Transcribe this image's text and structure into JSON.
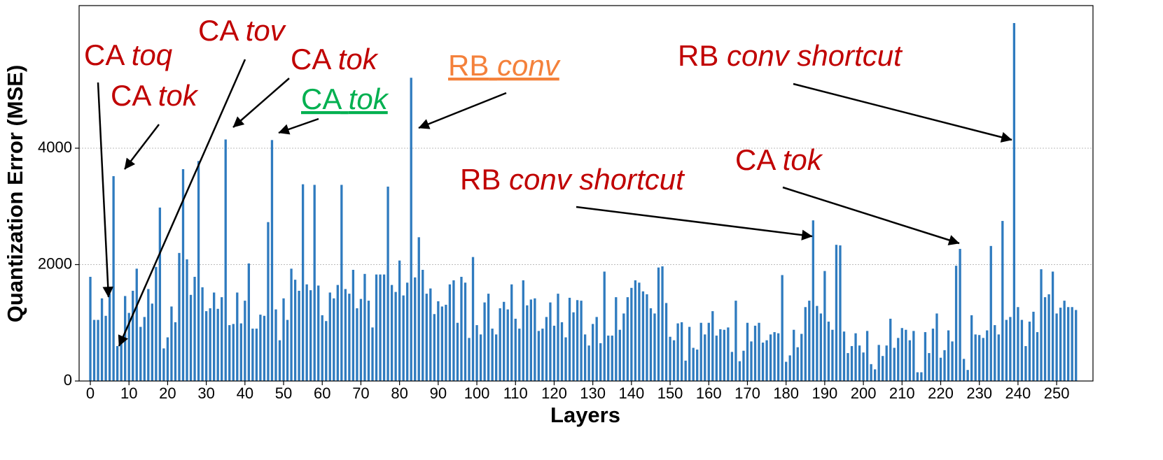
{
  "chart_data": {
    "type": "bar",
    "x_label": "Layers",
    "y_label": "Quantization Error (MSE)",
    "color": "#2f7bbf",
    "grid": true,
    "xlim": [
      -2.9,
      259.4
    ],
    "ylim": [
      0,
      6450
    ],
    "xticks": [
      0,
      10,
      20,
      30,
      40,
      50,
      60,
      70,
      80,
      90,
      100,
      110,
      120,
      130,
      140,
      150,
      160,
      170,
      180,
      190,
      200,
      210,
      220,
      230,
      240,
      250
    ],
    "yticks": [
      0,
      2000,
      4000
    ],
    "values": [
      1790,
      1050,
      1050,
      1420,
      1120,
      1500,
      3520,
      600,
      700,
      1460,
      1170,
      1550,
      1930,
      930,
      1100,
      1580,
      1330,
      1960,
      2980,
      560,
      750,
      1280,
      1010,
      2200,
      3640,
      2090,
      1480,
      1790,
      3780,
      1610,
      1200,
      1250,
      1520,
      1240,
      1440,
      4150,
      960,
      980,
      1520,
      990,
      1380,
      2020,
      900,
      900,
      1140,
      1120,
      2730,
      4140,
      1230,
      700,
      1420,
      1050,
      1930,
      1740,
      1550,
      3380,
      1660,
      1560,
      3370,
      1640,
      1130,
      1030,
      1520,
      1420,
      1650,
      3370,
      1580,
      1500,
      1910,
      1250,
      1410,
      1840,
      1380,
      920,
      1830,
      1830,
      1830,
      3340,
      1650,
      1530,
      2070,
      1470,
      1690,
      5210,
      1780,
      2470,
      1910,
      1500,
      1590,
      1150,
      1370,
      1280,
      1310,
      1660,
      1730,
      1000,
      1790,
      1690,
      740,
      2130,
      960,
      800,
      1350,
      1500,
      900,
      800,
      1250,
      1360,
      1230,
      1660,
      1070,
      900,
      1730,
      1300,
      1400,
      1420,
      860,
      900,
      1100,
      1350,
      950,
      1500,
      1010,
      750,
      1430,
      1180,
      1390,
      1380,
      800,
      610,
      980,
      1100,
      650,
      1880,
      780,
      780,
      1440,
      880,
      1160,
      1440,
      1600,
      1730,
      1690,
      1540,
      1490,
      1250,
      1160,
      1950,
      1970,
      1340,
      760,
      700,
      990,
      1010,
      350,
      930,
      570,
      540,
      1000,
      800,
      1000,
      1200,
      780,
      890,
      880,
      920,
      500,
      1380,
      340,
      520,
      1000,
      680,
      950,
      1000,
      660,
      700,
      800,
      840,
      820,
      1820,
      330,
      440,
      880,
      580,
      810,
      1270,
      1380,
      2760,
      1290,
      1160,
      1890,
      1020,
      880,
      2340,
      2330,
      850,
      480,
      600,
      820,
      610,
      490,
      860,
      290,
      200,
      620,
      430,
      610,
      1070,
      570,
      740,
      910,
      880,
      700,
      860,
      150,
      150,
      840,
      480,
      900,
      1160,
      400,
      530,
      870,
      680,
      1980,
      2270,
      380,
      190,
      1130,
      800,
      790,
      740,
      870,
      2320,
      960,
      800,
      2750,
      1050,
      1100,
      6150,
      1270,
      1050,
      600,
      1020,
      1190,
      840,
      1920,
      1440,
      1490,
      1880,
      1160,
      1260,
      1380,
      1270,
      1270,
      1220
    ],
    "annotations": [
      {
        "label": "CA",
        "emph": "toq",
        "color": "#c00000"
      },
      {
        "label": "CA",
        "emph": "tok",
        "color": "#c00000"
      },
      {
        "label": "CA",
        "emph": "tov",
        "color": "#c00000"
      },
      {
        "label": "CA",
        "emph": "tok",
        "color": "#c00000"
      },
      {
        "label": "CA",
        "emph": "tok",
        "color": "#00b050",
        "underline": true
      },
      {
        "label": "RB",
        "emph": "conv",
        "color": "#f4813b",
        "underline": true
      },
      {
        "label": "RB",
        "emph": "conv shortcut",
        "color": "#c00000"
      },
      {
        "label": "RB",
        "emph": "conv shortcut",
        "color": "#c00000"
      },
      {
        "label": "CA",
        "emph": "tok",
        "color": "#c00000"
      }
    ]
  }
}
